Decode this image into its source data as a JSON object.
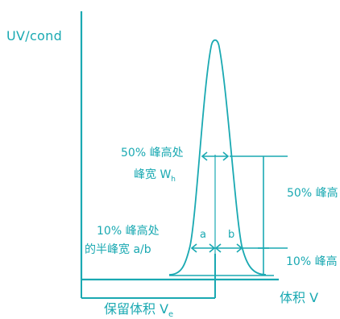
{
  "labels": {
    "y_axis": "UV/cond",
    "x_axis": "体积 V",
    "retention_volume": "保留体积 V",
    "retention_sub": "e",
    "width50_line1": "50% 峰高处",
    "width50_line2": "峰宽 W",
    "width50_sub": "h",
    "width10_line1": "10% 峰高处",
    "width10_line2": "的半峰宽 a/b",
    "height50": "50% 峰高",
    "height10": "10% 峰高",
    "a": "a",
    "b": "b"
  },
  "colors": {
    "accent": "#1aa9b2",
    "text": "#1aa9b2"
  }
}
